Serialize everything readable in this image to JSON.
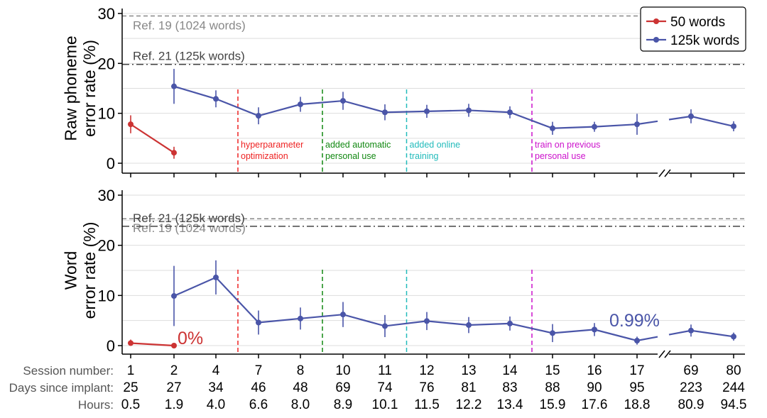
{
  "colors": {
    "series_50": "#cc3333",
    "series_125k": "#4a55a8",
    "ref19": "#888888",
    "ref21": "#444444",
    "grid": "#dddddd",
    "axis": "#000000"
  },
  "table": {
    "labels": [
      "Session number:",
      "Days since implant:",
      "Hours:"
    ],
    "sessions": [
      "1",
      "2",
      "4",
      "7",
      "8",
      "10",
      "11",
      "12",
      "13",
      "14",
      "15",
      "16",
      "17",
      "69",
      "80"
    ],
    "days": [
      "25",
      "27",
      "34",
      "46",
      "48",
      "69",
      "74",
      "76",
      "81",
      "83",
      "88",
      "90",
      "95",
      "223",
      "244"
    ],
    "hours": [
      "0.5",
      "1.9",
      "4.0",
      "6.6",
      "8.0",
      "8.9",
      "10.1",
      "11.5",
      "12.2",
      "13.4",
      "15.9",
      "17.6",
      "18.8",
      "80.9",
      "94.5"
    ]
  },
  "chart_data": [
    {
      "type": "line",
      "ylabel": "Raw phoneme\nerror rate (%)",
      "ylim": [
        0,
        30
      ],
      "yticks": [
        0,
        10,
        20,
        30
      ],
      "grid": true,
      "legend": {
        "placement": "top-right",
        "entries": [
          "50 words",
          "125k words"
        ]
      },
      "x": [
        "1",
        "2",
        "4",
        "7",
        "8",
        "10",
        "11",
        "12",
        "13",
        "14",
        "15",
        "16",
        "17",
        "69",
        "80"
      ],
      "axis_break_between": [
        "17",
        "69"
      ],
      "reference_lines": [
        {
          "label": "Ref. 19 (1024 words)",
          "value": 29.5,
          "style": "dashed"
        },
        {
          "label": "Ref. 21 (125k words)",
          "value": 19.8,
          "style": "dashdot"
        }
      ],
      "annotations": [
        {
          "after_session": "4",
          "lines": [
            "hyperparameter",
            "optimization"
          ],
          "color": "#ee2222"
        },
        {
          "after_session": "8",
          "lines": [
            "added automatic",
            "personal use"
          ],
          "color": "#118811"
        },
        {
          "after_session": "11",
          "lines": [
            "added online",
            "training"
          ],
          "color": "#22bbbb"
        },
        {
          "after_session": "14",
          "lines": [
            "train on previous",
            "personal use"
          ],
          "color": "#cc11cc"
        }
      ],
      "series": [
        {
          "name": "50 words",
          "x": [
            "1",
            "2"
          ],
          "values": [
            7.8,
            2.1
          ],
          "err": [
            1.8,
            1.2
          ]
        },
        {
          "name": "125k words",
          "x": [
            "2",
            "4",
            "7",
            "8",
            "10",
            "11",
            "12",
            "13",
            "14",
            "15",
            "16",
            "17",
            "69",
            "80"
          ],
          "values": [
            15.4,
            12.9,
            9.5,
            11.8,
            12.5,
            10.2,
            10.4,
            10.6,
            10.2,
            7.0,
            7.3,
            7.8,
            9.4,
            7.4
          ],
          "err": [
            3.5,
            1.7,
            1.7,
            1.5,
            1.8,
            1.6,
            1.3,
            1.3,
            1.2,
            1.3,
            1.0,
            2.1,
            1.4,
            1.0
          ]
        }
      ]
    },
    {
      "type": "line",
      "ylabel": "Word\nerror rate (%)",
      "ylim": [
        0,
        30
      ],
      "yticks": [
        0,
        10,
        20,
        30
      ],
      "grid": true,
      "x": [
        "1",
        "2",
        "4",
        "7",
        "8",
        "10",
        "11",
        "12",
        "13",
        "14",
        "15",
        "16",
        "17",
        "69",
        "80"
      ],
      "axis_break_between": [
        "17",
        "69"
      ],
      "reference_lines": [
        {
          "label": "Ref. 19 (1024 words)",
          "value": 25.3,
          "style": "dashed"
        },
        {
          "label": "Ref. 21 (125k words)",
          "value": 23.8,
          "style": "dashdot"
        }
      ],
      "annotations": [
        {
          "after_session": "4"
        },
        {
          "after_session": "8"
        },
        {
          "after_session": "11"
        },
        {
          "after_session": "14"
        }
      ],
      "value_labels": [
        {
          "text": "0%",
          "near_session": "2",
          "series": "50 words"
        },
        {
          "text": "0.99%",
          "near_session": "17",
          "series": "125k words"
        }
      ],
      "series": [
        {
          "name": "50 words",
          "x": [
            "1",
            "2"
          ],
          "values": [
            0.5,
            0.0
          ],
          "err": [
            0.7,
            0.2
          ]
        },
        {
          "name": "125k words",
          "x": [
            "2",
            "4",
            "7",
            "8",
            "10",
            "11",
            "12",
            "13",
            "14",
            "15",
            "16",
            "17",
            "69",
            "80"
          ],
          "values": [
            9.9,
            13.6,
            4.6,
            5.4,
            6.2,
            3.9,
            4.9,
            4.1,
            4.4,
            2.5,
            3.2,
            0.99,
            3.0,
            1.8
          ],
          "err": [
            6.0,
            3.4,
            2.4,
            2.2,
            2.5,
            2.2,
            1.8,
            1.6,
            1.4,
            1.8,
            1.3,
            0.8,
            1.2,
            0.8
          ]
        }
      ]
    }
  ]
}
